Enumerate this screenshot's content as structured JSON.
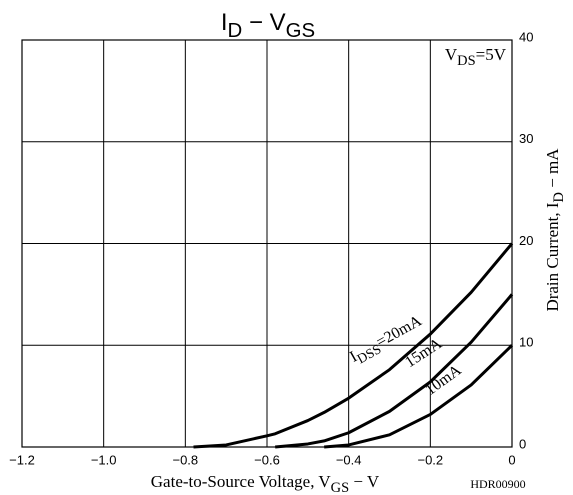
{
  "chart_data": {
    "type": "line",
    "title": [
      "I",
      "D",
      " − V",
      "GS"
    ],
    "x_label": [
      "Gate-to-Source Voltage, V",
      "GS",
      " − V"
    ],
    "y_label": [
      "Drain Current, I",
      "D",
      " − mA"
    ],
    "annotation": [
      "V",
      "DS",
      "=5V"
    ],
    "code": "HDR00900",
    "x": [
      -0.78,
      -0.7,
      -0.6,
      -0.58,
      -0.5,
      -0.46,
      -0.4,
      -0.3,
      -0.2,
      -0.1,
      0
    ],
    "series": [
      {
        "label": [
          "I",
          "DSS",
          "=20mA"
        ],
        "color": "#000000",
        "values": [
          0,
          0.2,
          1.1,
          1.3,
          2.6,
          3.4,
          4.8,
          7.6,
          11.1,
          15.2,
          20
        ]
      },
      {
        "label": [
          "15mA"
        ],
        "color": "#000000",
        "values": [
          null,
          null,
          null,
          0,
          0.3,
          0.6,
          1.4,
          3.5,
          6.4,
          10.3,
          15
        ]
      },
      {
        "label": [
          "10mA"
        ],
        "color": "#000000",
        "values": [
          null,
          null,
          null,
          null,
          null,
          0,
          0.2,
          1.2,
          3.2,
          6.1,
          10
        ]
      }
    ],
    "xlim": [
      -1.2,
      0
    ],
    "xticks": [
      {
        "value": -1.2,
        "label": "−1.2"
      },
      {
        "value": -1.0,
        "label": "−1.0"
      },
      {
        "value": -0.8,
        "label": "−0.8"
      },
      {
        "value": -0.6,
        "label": "−0.6"
      },
      {
        "value": -0.4,
        "label": "−0.4"
      },
      {
        "value": -0.2,
        "label": "−0.2"
      },
      0
    ],
    "ylim": [
      0,
      40
    ],
    "yticks": [
      0,
      10,
      20,
      30,
      40
    ],
    "grid": true
  }
}
